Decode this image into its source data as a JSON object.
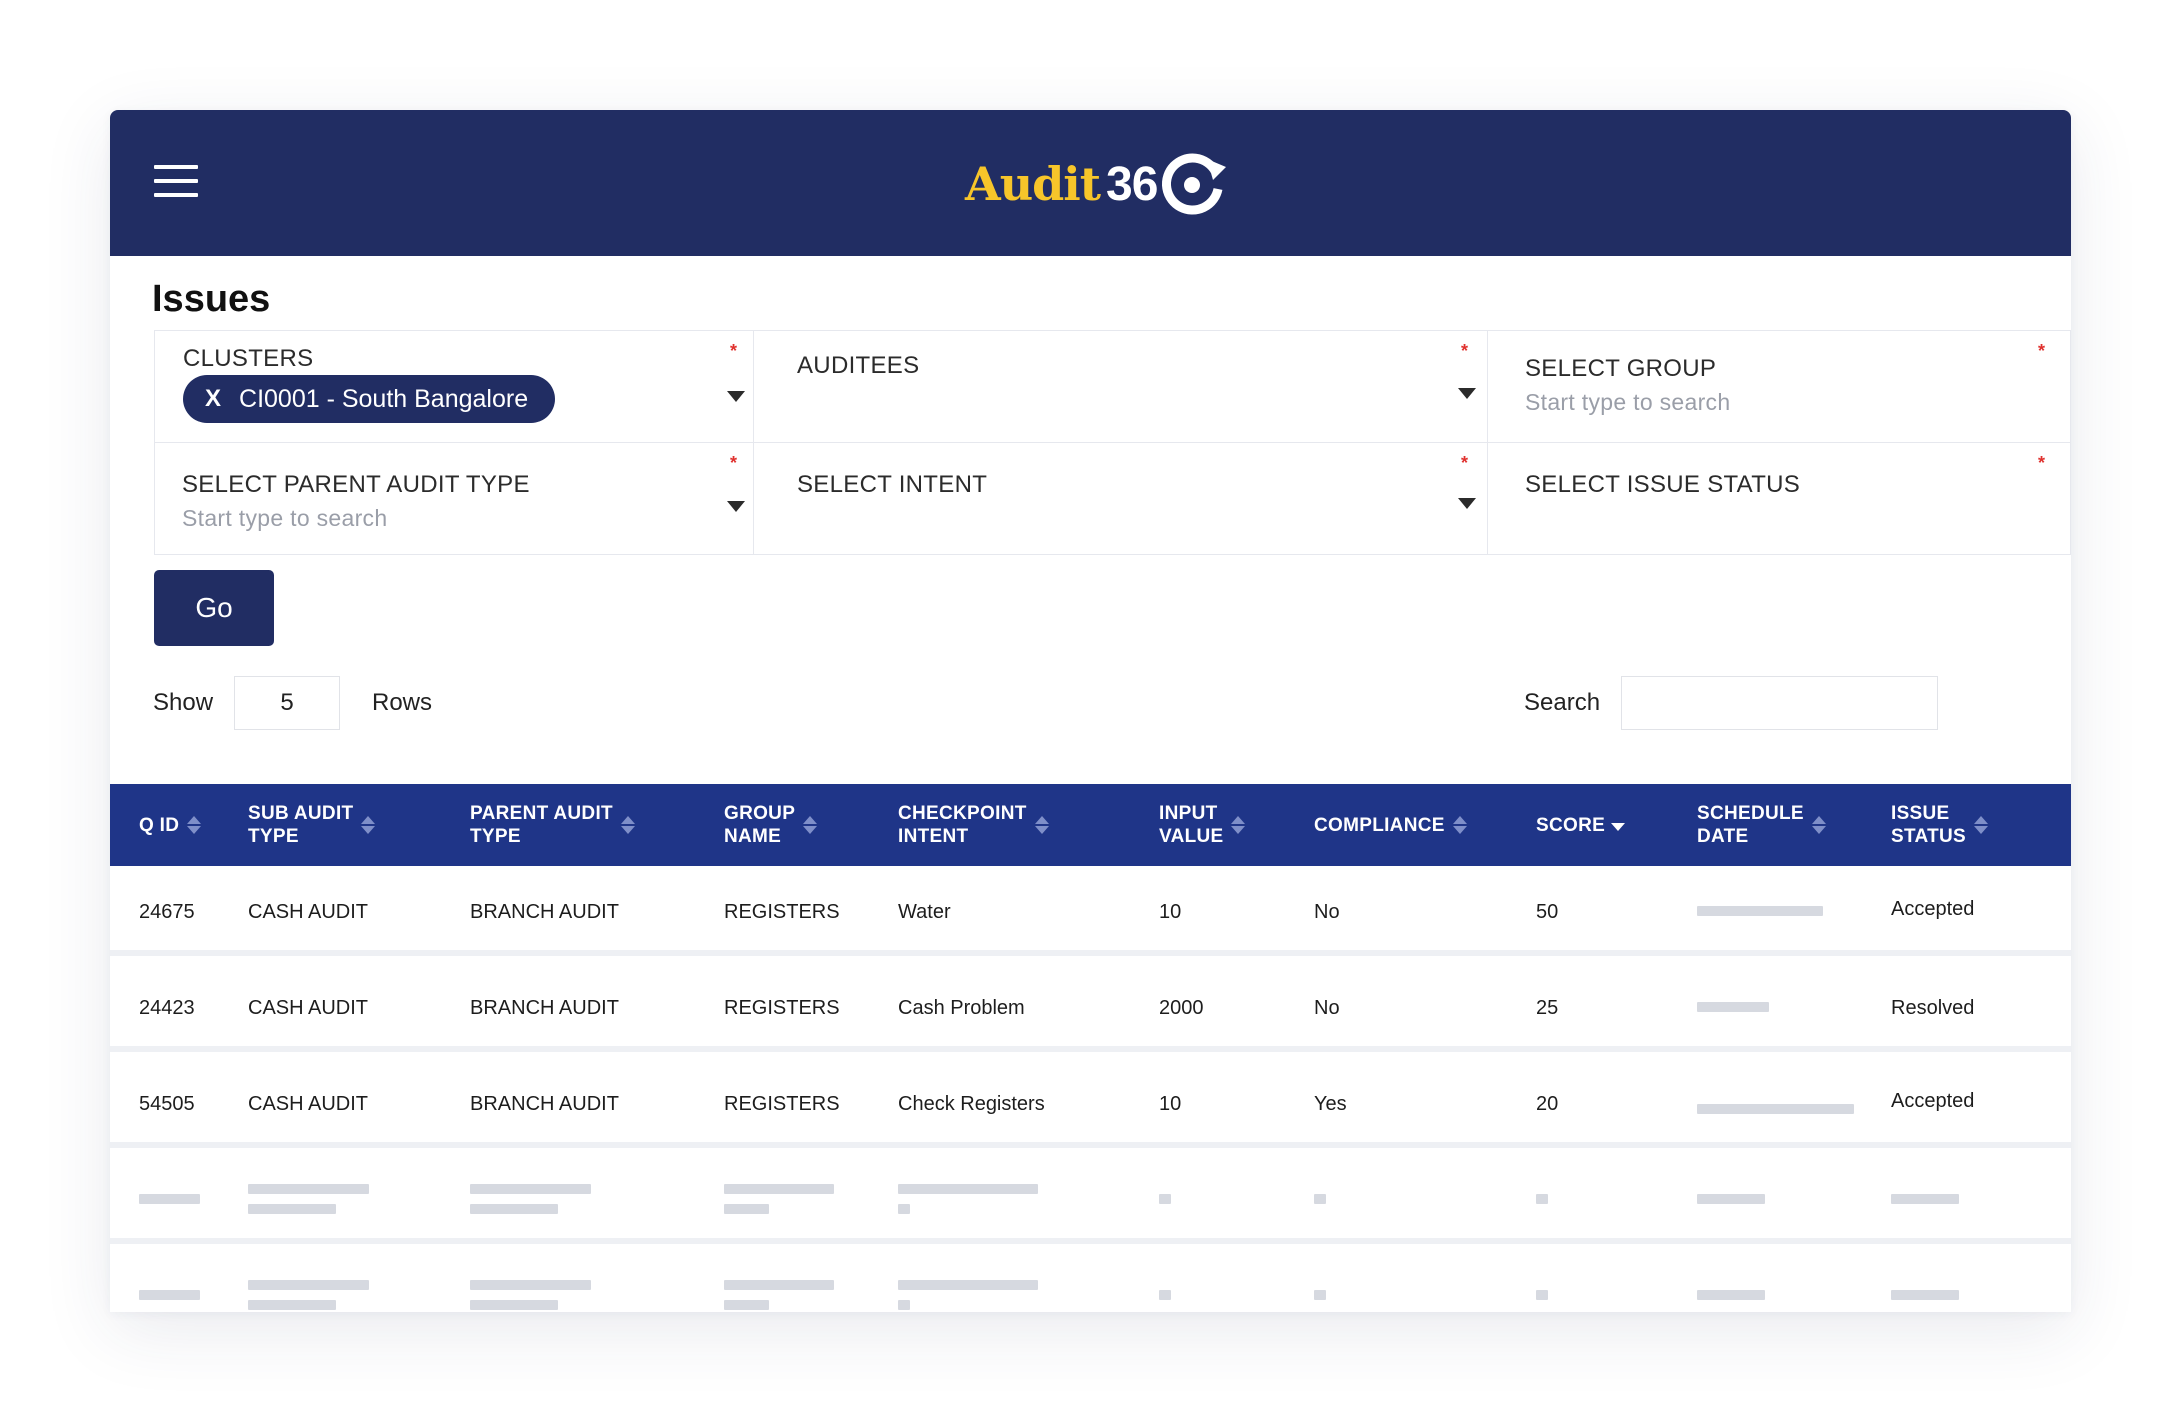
{
  "app": {
    "logo_text": "Audit",
    "logo_number": "36",
    "brand_color": "#212d63",
    "logo_accent": "#f7c52a",
    "table_header_color": "#1f3588"
  },
  "page": {
    "title": "Issues"
  },
  "filters": {
    "clusters": {
      "label": "CLUSTERS",
      "required": "*",
      "chip": {
        "remove": "X",
        "text": "CI0001 - South Bangalore"
      }
    },
    "auditees": {
      "label": "AUDITEES",
      "required": "*"
    },
    "group": {
      "label": "SELECT GROUP",
      "required": "*",
      "placeholder": "Start type to search"
    },
    "parent_audit_type": {
      "label": "SELECT PARENT AUDIT TYPE",
      "required": "*",
      "placeholder": "Start type to search"
    },
    "intent": {
      "label": "SELECT INTENT",
      "required": "*"
    },
    "issue_status": {
      "label": "SELECT ISSUE STATUS",
      "required": "*"
    }
  },
  "go_button": "Go",
  "table_controls": {
    "show_label": "Show",
    "rows_value": "5",
    "rows_label": "Rows",
    "search_label": "Search",
    "search_value": ""
  },
  "table": {
    "headers": {
      "qid": [
        "Q ID"
      ],
      "sub_audit_type": [
        "SUB AUDIT",
        "TYPE"
      ],
      "parent_audit_type": [
        "PARENT AUDIT",
        "TYPE"
      ],
      "group_name": [
        "GROUP",
        "NAME"
      ],
      "checkpoint_intent": [
        "CHECKPOINT",
        "INTENT"
      ],
      "input_value": [
        "INPUT",
        "VALUE"
      ],
      "compliance": [
        "COMPLIANCE"
      ],
      "score": [
        "SCORE"
      ],
      "schedule_date": [
        "SCHEDULE",
        "DATE"
      ],
      "issue_status": [
        "ISSUE",
        "STATUS"
      ]
    },
    "rows": [
      {
        "qid": "24675",
        "sub_audit_type": "CASH AUDIT",
        "parent_audit_type": "BRANCH AUDIT",
        "group_name": "REGISTERS",
        "checkpoint_intent": "Water",
        "input_value": "10",
        "compliance": "No",
        "score": "50",
        "issue_status": "Accepted"
      },
      {
        "qid": "24423",
        "sub_audit_type": "CASH AUDIT",
        "parent_audit_type": "BRANCH AUDIT",
        "group_name": "REGISTERS",
        "checkpoint_intent": "Cash Problem",
        "input_value": "2000",
        "compliance": "No",
        "score": "25",
        "issue_status": "Resolved"
      },
      {
        "qid": "54505",
        "sub_audit_type": "CASH AUDIT",
        "parent_audit_type": "BRANCH AUDIT",
        "group_name": "REGISTERS",
        "checkpoint_intent": "Check Registers",
        "input_value": "10",
        "compliance": "Yes",
        "score": "20",
        "issue_status": "Accepted"
      }
    ]
  },
  "icons": {
    "menu": "hamburger-menu-icon",
    "dropdown": "caret-down-icon",
    "sort": "sort-arrows-icon",
    "sort_active": "sort-desc-icon",
    "logo_mark": "refresh-ring-icon"
  }
}
